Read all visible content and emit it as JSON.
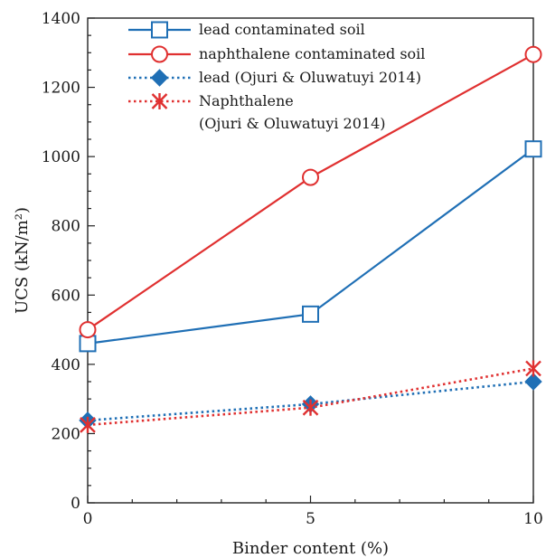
{
  "chart_data": {
    "type": "line",
    "xlabel": "Binder content (%)",
    "ylabel": "UCS (kN/m²)",
    "xlim": [
      0,
      10
    ],
    "ylim": [
      0,
      1400
    ],
    "xticks": [
      "0",
      "5",
      "10"
    ],
    "yticks": [
      "0",
      "200",
      "400",
      "600",
      "800",
      "1000",
      "1200",
      "1400"
    ],
    "grid": false,
    "legend_position": "top-left",
    "x": [
      0,
      5,
      10
    ],
    "series": [
      {
        "name": "lead contaminated soil",
        "values": [
          460,
          545,
          1022
        ],
        "color": "#1f6fb5",
        "marker": "open-square",
        "line": "solid"
      },
      {
        "name": "naphthalene contaminated soil",
        "values": [
          500,
          940,
          1295
        ],
        "color": "#e03030",
        "marker": "open-circle",
        "line": "solid"
      },
      {
        "name": "lead (Ojuri & Oluwatuyi 2014)",
        "values": [
          238,
          285,
          350
        ],
        "color": "#1f6fb5",
        "marker": "filled-diamond",
        "line": "dotted"
      },
      {
        "name": "Naphthalene",
        "name_line2": "(Ojuri & Oluwatuyi 2014)",
        "values": [
          225,
          275,
          388
        ],
        "color": "#e03030",
        "marker": "star",
        "line": "dotted"
      }
    ]
  }
}
